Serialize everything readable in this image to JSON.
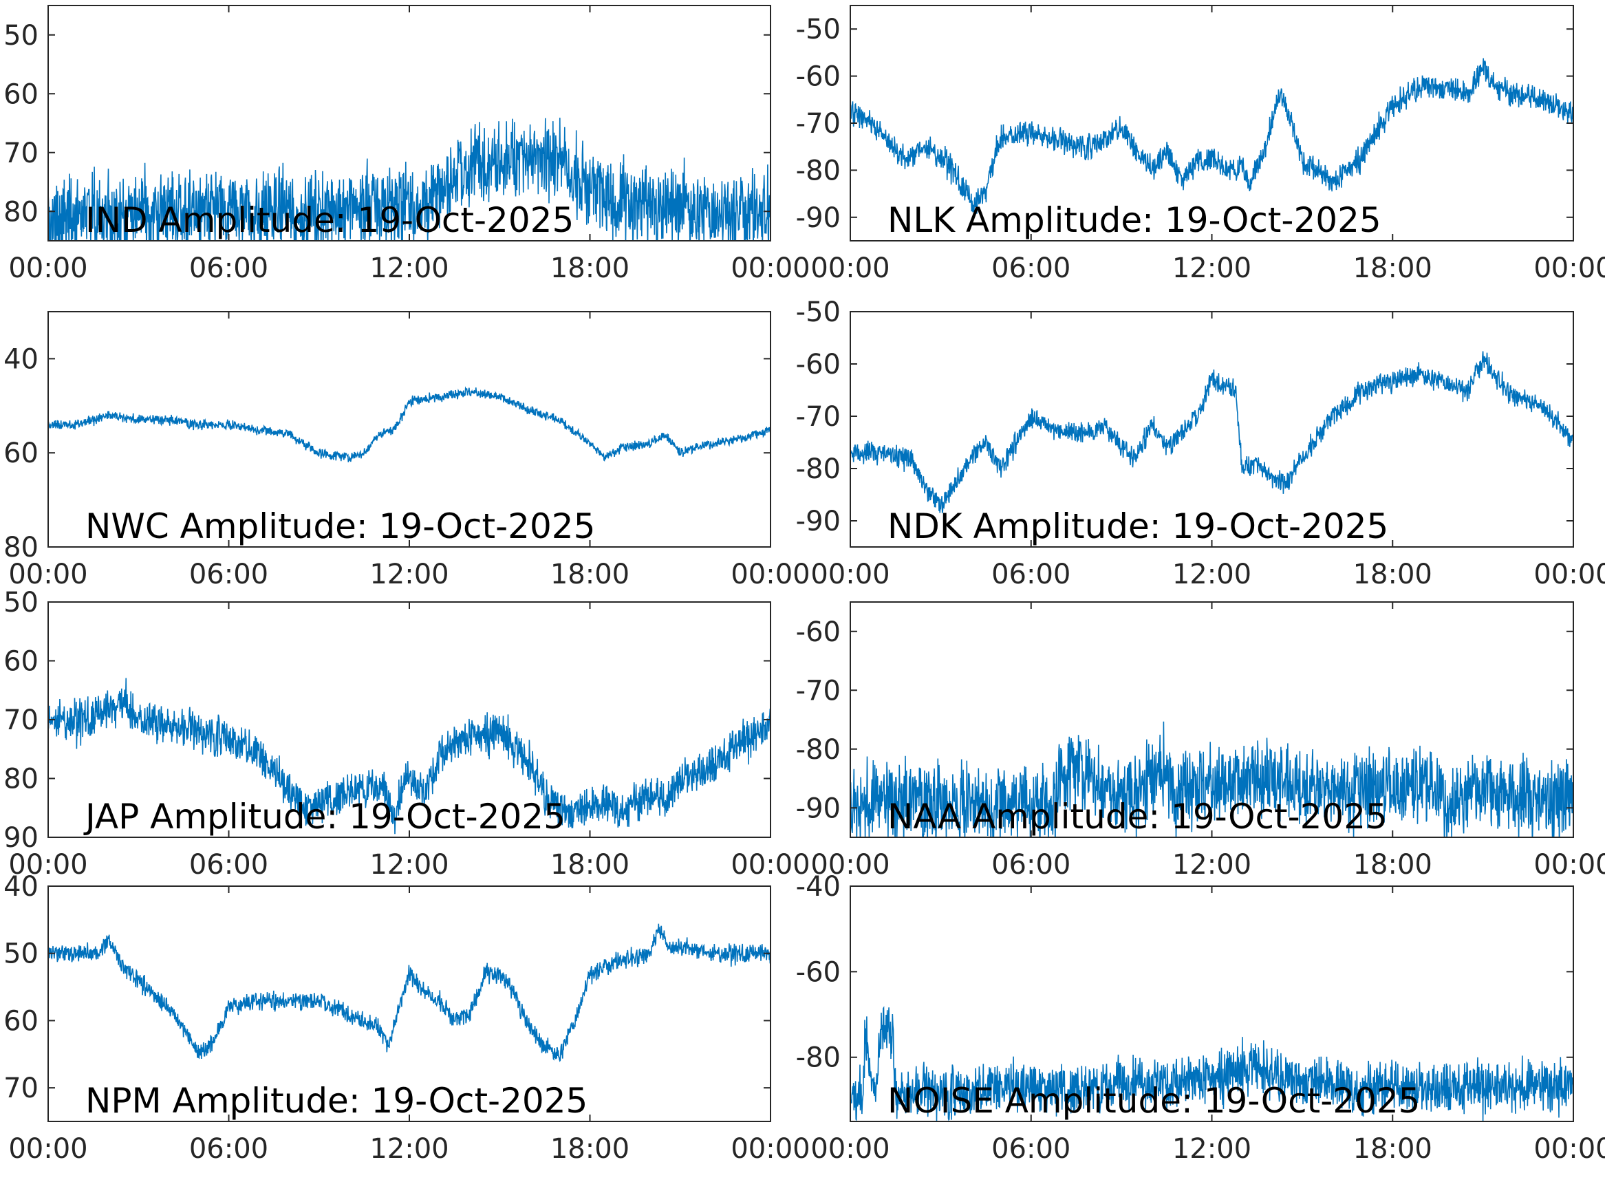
{
  "colors": {
    "series": "#0072BD",
    "axis": "#262626",
    "background": "#FFFFFF",
    "title": "#000000"
  },
  "chart_data": [
    {
      "type": "line",
      "title": "IND Amplitude: 19-Oct-2025",
      "x_ticks": [
        "00:00",
        "06:00",
        "12:00",
        "18:00",
        "00:00"
      ],
      "xlim": [
        0,
        24
      ],
      "ylim": [
        -85,
        -45
      ],
      "y_ticks": [
        -80,
        -70,
        -60,
        -50
      ],
      "y_tick_labels": [
        "80",
        "70",
        "60",
        "50"
      ],
      "series": [
        {
          "x": [
            0,
            1,
            2,
            3,
            4,
            5,
            6,
            7,
            8,
            9,
            10,
            11,
            12,
            12.8,
            13.5,
            14,
            15,
            16,
            17,
            18,
            19,
            20,
            21,
            22,
            23,
            24
          ],
          "y": [
            -82,
            -81,
            -81,
            -80,
            -80,
            -80,
            -80,
            -80,
            -80,
            -80,
            -79,
            -79,
            -79,
            -78,
            -74,
            -72,
            -71,
            -71,
            -72,
            -76,
            -78,
            -79,
            -79,
            -80,
            -80,
            -80
          ],
          "noise": 10
        }
      ]
    },
    {
      "type": "line",
      "title": "NLK Amplitude: 19-Oct-2025",
      "x_ticks": [
        "00:00",
        "06:00",
        "12:00",
        "18:00",
        "00:00"
      ],
      "xlim": [
        0,
        24
      ],
      "ylim": [
        -95,
        -45
      ],
      "y_ticks": [
        -90,
        -80,
        -70,
        -60,
        -50
      ],
      "y_tick_labels": [
        "-90",
        "-80",
        "-70",
        "-60",
        "-50"
      ],
      "series": [
        {
          "x": [
            0,
            0.7,
            1.2,
            1.8,
            2.5,
            3.2,
            3.8,
            4.1,
            4.5,
            5,
            6,
            7,
            8,
            8.5,
            9,
            9.5,
            10,
            10.5,
            11,
            11.5,
            12,
            12.5,
            13,
            13.3,
            13.6,
            14,
            14.3,
            14.5,
            15,
            15.5,
            16,
            17,
            18,
            19,
            20,
            20.5,
            21,
            21.5,
            22,
            23,
            24
          ],
          "y": [
            -67,
            -70,
            -73,
            -78,
            -75,
            -78,
            -84,
            -88,
            -84,
            -73,
            -72,
            -74,
            -75,
            -73,
            -71,
            -76,
            -80,
            -76,
            -82,
            -78,
            -77,
            -80,
            -79,
            -83,
            -78,
            -70,
            -63,
            -67,
            -78,
            -80,
            -83,
            -77,
            -66,
            -62,
            -63,
            -64,
            -58,
            -62,
            -64,
            -65,
            -68
          ],
          "noise": 4
        }
      ]
    },
    {
      "type": "line",
      "title": "NWC Amplitude: 19-Oct-2025",
      "x_ticks": [
        "00:00",
        "06:00",
        "12:00",
        "18:00",
        "00:00"
      ],
      "xlim": [
        0,
        24
      ],
      "ylim": [
        -80,
        -30
      ],
      "y_ticks": [
        -80,
        -60,
        -40
      ],
      "y_tick_labels": [
        "80",
        "60",
        "40"
      ],
      "series": [
        {
          "x": [
            0,
            1,
            2,
            3,
            4,
            5,
            6,
            7,
            8,
            9,
            10,
            10.5,
            11,
            11.5,
            12,
            13,
            14,
            15,
            16,
            17,
            18,
            18.5,
            19,
            20,
            20.5,
            21,
            22,
            23,
            24
          ],
          "y": [
            -54,
            -54,
            -52,
            -53,
            -53,
            -54,
            -54,
            -55,
            -56,
            -60,
            -61,
            -60,
            -56,
            -55,
            -49,
            -48,
            -47,
            -48,
            -51,
            -53,
            -58,
            -61,
            -59,
            -58,
            -56,
            -60,
            -58,
            -57,
            -55
          ],
          "noise": 1.5
        }
      ]
    },
    {
      "type": "line",
      "title": "NDK Amplitude: 19-Oct-2025",
      "x_ticks": [
        "00:00",
        "06:00",
        "12:00",
        "18:00",
        "00:00"
      ],
      "xlim": [
        0,
        24
      ],
      "ylim": [
        -95,
        -50
      ],
      "y_ticks": [
        -90,
        -80,
        -70,
        -60,
        -50
      ],
      "y_tick_labels": [
        "-90",
        "-80",
        "-70",
        "-60",
        "-50"
      ],
      "series": [
        {
          "x": [
            0,
            1,
            2,
            2.5,
            3,
            3.5,
            4,
            4.5,
            5,
            6,
            7,
            8,
            8.5,
            9,
            9.5,
            10,
            10.5,
            11,
            11.5,
            12,
            12.5,
            12.8,
            13,
            13.5,
            14,
            14.5,
            15,
            16,
            17,
            18,
            19,
            20,
            20.5,
            21,
            21.5,
            22,
            23,
            24
          ],
          "y": [
            -77,
            -77,
            -78,
            -84,
            -87,
            -83,
            -78,
            -75,
            -80,
            -70,
            -73,
            -73,
            -72,
            -76,
            -78,
            -71,
            -76,
            -73,
            -70,
            -63,
            -64,
            -65,
            -80,
            -79,
            -82,
            -83,
            -78,
            -70,
            -65,
            -63,
            -62,
            -64,
            -65,
            -59,
            -63,
            -66,
            -68,
            -75
          ],
          "noise": 3
        }
      ]
    },
    {
      "type": "line",
      "title": "JAP Amplitude: 19-Oct-2025",
      "x_ticks": [
        "00:00",
        "06:00",
        "12:00",
        "18:00",
        "00:00"
      ],
      "xlim": [
        0,
        24
      ],
      "ylim": [
        -90,
        -50
      ],
      "y_ticks": [
        -90,
        -80,
        -70,
        -60,
        -50
      ],
      "y_tick_labels": [
        "90",
        "80",
        "70",
        "60",
        "50"
      ],
      "series": [
        {
          "x": [
            0,
            1,
            1.8,
            2.5,
            3,
            4,
            5,
            6,
            7,
            8,
            8.5,
            9,
            10,
            11,
            11.5,
            12,
            12.5,
            13,
            14,
            15,
            16,
            16.5,
            17,
            17.5,
            18,
            18.5,
            19,
            20,
            20.5,
            21,
            22,
            23,
            24
          ],
          "y": [
            -70,
            -70,
            -69,
            -67,
            -70,
            -71,
            -72,
            -73,
            -76,
            -82,
            -85,
            -84,
            -82,
            -81,
            -86,
            -79,
            -83,
            -76,
            -73,
            -72,
            -77,
            -83,
            -85,
            -86,
            -85,
            -84,
            -85,
            -83,
            -84,
            -80,
            -78,
            -74,
            -71
          ],
          "noise": 5
        }
      ]
    },
    {
      "type": "line",
      "title": "NAA Amplitude: 19-Oct-2025",
      "x_ticks": [
        "00:00",
        "06:00",
        "12:00",
        "18:00",
        "00:00"
      ],
      "xlim": [
        0,
        24
      ],
      "ylim": [
        -95,
        -55
      ],
      "y_ticks": [
        -90,
        -80,
        -70,
        -60
      ],
      "y_tick_labels": [
        "-90",
        "-80",
        "-70",
        "-60"
      ],
      "series": [
        {
          "x": [
            0,
            1,
            2,
            3,
            4,
            5,
            6,
            6.8,
            7,
            8,
            8.5,
            9,
            10,
            10.3,
            10.8,
            11,
            12,
            13,
            14,
            15,
            16,
            17,
            18,
            19,
            20,
            21,
            22,
            23,
            24
          ],
          "y": [
            -90,
            -89,
            -89,
            -89,
            -89,
            -89,
            -89,
            -89,
            -83,
            -84,
            -87,
            -88,
            -85,
            -82,
            -87,
            -86,
            -86,
            -85,
            -85,
            -86,
            -87,
            -87,
            -86,
            -86,
            -89,
            -86,
            -88,
            -89,
            -88
          ],
          "noise": 10
        }
      ]
    },
    {
      "type": "line",
      "title": "NPM Amplitude: 19-Oct-2025",
      "x_ticks": [
        "00:00",
        "06:00",
        "12:00",
        "18:00",
        "00:00"
      ],
      "xlim": [
        0,
        24
      ],
      "ylim": [
        -75,
        -40
      ],
      "y_ticks": [
        -70,
        -60,
        -50,
        -40
      ],
      "y_tick_labels": [
        "70",
        "60",
        "50",
        "40"
      ],
      "series": [
        {
          "x": [
            0,
            1,
            1.7,
            2,
            2.5,
            3,
            4,
            4.5,
            5,
            5.5,
            6,
            7,
            8,
            9,
            10,
            11,
            11.3,
            11.6,
            12,
            12.5,
            13,
            13.5,
            14,
            14.5,
            15,
            15.5,
            16,
            16.5,
            17,
            17.5,
            18,
            19,
            20,
            20.3,
            20.6,
            21,
            22,
            23,
            24
          ],
          "y": [
            -50,
            -50,
            -50,
            -48,
            -52,
            -54,
            -58,
            -61,
            -65,
            -63,
            -58,
            -57,
            -57,
            -57,
            -59,
            -61,
            -64,
            -59,
            -53,
            -56,
            -57,
            -60,
            -59,
            -53,
            -53,
            -56,
            -61,
            -64,
            -65,
            -60,
            -53,
            -51,
            -50,
            -46,
            -49,
            -49,
            -50,
            -50,
            -50
          ],
          "noise": 2
        }
      ]
    },
    {
      "type": "line",
      "title": "NOISE Amplitude: 19-Oct-2025",
      "x_ticks": [
        "00:00",
        "06:00",
        "12:00",
        "18:00",
        "00:00"
      ],
      "xlim": [
        0,
        24
      ],
      "ylim": [
        -95,
        -40
      ],
      "y_ticks": [
        -80,
        -60,
        -40
      ],
      "y_tick_labels": [
        "-80",
        "-60",
        "-40"
      ],
      "series": [
        {
          "x": [
            0,
            0.4,
            0.5,
            0.8,
            1,
            1.4,
            1.5,
            2,
            3,
            4,
            5,
            6,
            7,
            8,
            9,
            10,
            11,
            12,
            13,
            13.5,
            14,
            15,
            16,
            17,
            18,
            19,
            20,
            21,
            22,
            23,
            24
          ],
          "y": [
            -90,
            -90,
            -74,
            -90,
            -74,
            -74,
            -89,
            -88,
            -88,
            -88,
            -87,
            -87,
            -87,
            -87,
            -86,
            -86,
            -86,
            -85,
            -83,
            -81,
            -84,
            -86,
            -86,
            -87,
            -87,
            -87,
            -87,
            -87,
            -87,
            -87,
            -87
          ],
          "noise": 9
        }
      ]
    }
  ]
}
